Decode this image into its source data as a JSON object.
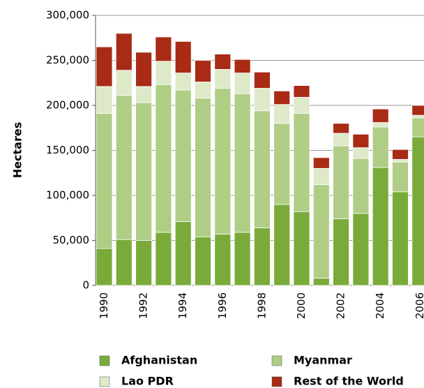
{
  "chart_data": {
    "type": "stacked_bar",
    "ylabel": "Hectares",
    "categories": [
      "1990",
      null,
      "1992",
      null,
      "1994",
      null,
      "1996",
      null,
      "1998",
      null,
      "2000",
      null,
      "2002",
      null,
      "2004",
      null,
      "2006"
    ],
    "series": [
      {
        "name": "Afghanistan",
        "color": "#7aab3a",
        "values": [
          41000,
          51000,
          50000,
          59000,
          71000,
          54000,
          57000,
          59000,
          64000,
          90000,
          82000,
          8000,
          74000,
          80000,
          131000,
          104000,
          165000
        ]
      },
      {
        "name": "Myanmar",
        "color": "#b0cd86",
        "values": [
          150000,
          160000,
          153000,
          164000,
          146000,
          154000,
          162000,
          154000,
          130000,
          90000,
          109000,
          104000,
          81000,
          61000,
          45000,
          33000,
          21000
        ]
      },
      {
        "name": "Lao PDR",
        "color": "#dde9c8",
        "values": [
          30000,
          28000,
          18000,
          26000,
          19000,
          18000,
          21000,
          23000,
          25000,
          21000,
          18000,
          18000,
          14000,
          12000,
          5000,
          3000,
          3000
        ]
      },
      {
        "name": "Rest of the World",
        "color": "#a92b16",
        "values": [
          44000,
          41000,
          38000,
          27000,
          35000,
          24000,
          17000,
          15000,
          18000,
          15000,
          13000,
          12000,
          11000,
          15000,
          15000,
          11000,
          11000
        ]
      }
    ],
    "ylim": [
      0,
      300000
    ],
    "yticks": [
      0,
      {
        "value": 50000,
        "label": "50,000"
      },
      {
        "value": 100000,
        "label": "100,000"
      },
      {
        "value": 150000,
        "label": "150,000"
      },
      {
        "value": 200000,
        "label": "200,000"
      },
      {
        "value": 250000,
        "label": "250,000"
      },
      {
        "value": 300000,
        "label": "300,000"
      }
    ],
    "grid": true
  }
}
